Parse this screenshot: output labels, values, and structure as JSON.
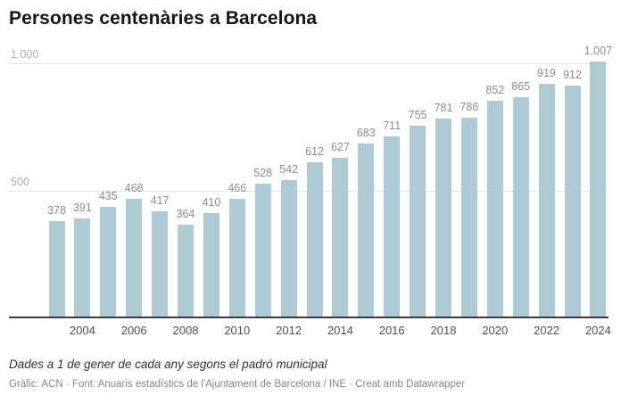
{
  "header": {
    "title": "Persones centenàries a Barcelona"
  },
  "footer": {
    "footnote": "Dades a 1 de gener de cada any segons el padró municipal",
    "byline": "Gràfic: ACN · Font: Anuaris estadístics de l'Ajuntament de Barcelona / INE · Creat amb Datawrapper"
  },
  "colors": {
    "bar": "#aecbd5",
    "value_label": "#8c8c8c",
    "axis_label": "#4f4f4f",
    "y_tick_label": "#adadad",
    "gridline": "#e3e3e3",
    "baseline": "#3c3c3c"
  },
  "chart_data": {
    "type": "bar",
    "title": "Persones centenàries a Barcelona",
    "x": [
      2003,
      2004,
      2005,
      2006,
      2007,
      2008,
      2009,
      2010,
      2011,
      2012,
      2013,
      2014,
      2015,
      2016,
      2017,
      2018,
      2019,
      2020,
      2021,
      2022,
      2023,
      2024
    ],
    "values": [
      378,
      391,
      435,
      468,
      417,
      364,
      410,
      466,
      528,
      542,
      612,
      627,
      683,
      711,
      755,
      781,
      786,
      852,
      865,
      919,
      912,
      1007
    ],
    "value_labels": [
      "378",
      "391",
      "435",
      "468",
      "417",
      "364",
      "410",
      "466",
      "528",
      "542",
      "612",
      "627",
      "683",
      "711",
      "755",
      "781",
      "786",
      "852",
      "865",
      "919",
      "912",
      "1.007"
    ],
    "xlabel": "",
    "ylabel": "",
    "ylim": [
      0,
      1050
    ],
    "y_ticks": [
      {
        "value": 500,
        "label": "500"
      },
      {
        "value": 1000,
        "label": "1.000"
      }
    ],
    "x_ticks": [
      {
        "value": 2004,
        "label": "2004"
      },
      {
        "value": 2006,
        "label": "2006"
      },
      {
        "value": 2008,
        "label": "2008"
      },
      {
        "value": 2010,
        "label": "2010"
      },
      {
        "value": 2012,
        "label": "2012"
      },
      {
        "value": 2014,
        "label": "2014"
      },
      {
        "value": 2016,
        "label": "2016"
      },
      {
        "value": 2018,
        "label": "2018"
      },
      {
        "value": 2020,
        "label": "2020"
      },
      {
        "value": 2022,
        "label": "2022"
      },
      {
        "value": 2024,
        "label": "2024"
      }
    ],
    "grid": true,
    "legend": false,
    "bar_labels_position": "above"
  }
}
